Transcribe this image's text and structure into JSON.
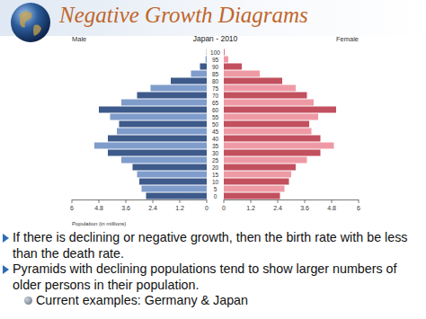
{
  "header": {
    "title": "Negative Growth Diagrams"
  },
  "chart_data": {
    "type": "pyramid",
    "title": "Japan - 2010",
    "orientation": "horizontal",
    "grid": false,
    "x_label": "Population (in millions)",
    "categories": [
      "0",
      "5",
      "10",
      "15",
      "20",
      "25",
      "30",
      "35",
      "40",
      "45",
      "50",
      "55",
      "60",
      "65",
      "70",
      "75",
      "80",
      "85",
      "90",
      "95",
      "100"
    ],
    "xlim": [
      0,
      6
    ],
    "xticks": [
      0,
      1.2,
      2.4,
      3.6,
      4.8,
      6
    ],
    "series": [
      {
        "name": "Male",
        "color": "#3d5a8a",
        "colors": [
          "#3d5a8a",
          "#7f9ccb",
          "#3d5a8a",
          "#7f9ccb",
          "#3d5a8a",
          "#7f9ccb",
          "#3d5a8a",
          "#7f9ccb",
          "#3d5a8a",
          "#7f9ccb",
          "#3d5a8a",
          "#7f9ccb",
          "#3d5a8a",
          "#7f9ccb",
          "#3d5a8a",
          "#7f9ccb",
          "#3d5a8a",
          "#7f9ccb",
          "#3d5a8a",
          "#7f9ccb",
          "#3d5a8a"
        ],
        "values": [
          2.7,
          2.9,
          3.0,
          3.1,
          3.3,
          3.8,
          4.4,
          5.0,
          4.4,
          4.0,
          3.9,
          4.3,
          4.8,
          3.8,
          3.1,
          2.5,
          1.6,
          0.7,
          0.3,
          0.05,
          0.01
        ]
      },
      {
        "name": "Female",
        "color": "#c2505e",
        "colors": [
          "#c2505e",
          "#ee9aa5",
          "#c2505e",
          "#ee9aa5",
          "#c2505e",
          "#ee9aa5",
          "#c2505e",
          "#ee9aa5",
          "#c2505e",
          "#ee9aa5",
          "#c2505e",
          "#ee9aa5",
          "#c2505e",
          "#ee9aa5",
          "#c2505e",
          "#ee9aa5",
          "#c2505e",
          "#ee9aa5",
          "#c2505e",
          "#ee9aa5",
          "#c2505e"
        ],
        "values": [
          2.5,
          2.7,
          2.9,
          3.0,
          3.2,
          3.7,
          4.3,
          4.9,
          4.3,
          3.9,
          3.8,
          4.2,
          5.0,
          4.0,
          3.7,
          3.2,
          2.6,
          1.6,
          0.8,
          0.2,
          0.03
        ]
      }
    ]
  },
  "bullets": [
    {
      "text": "If there is declining or negative growth, then the birth rate with be less than the death rate."
    },
    {
      "text": "Pyramids with declining populations tend to show larger numbers of older persons in their population.",
      "sub": [
        "Current examples: Germany & Japan"
      ]
    }
  ]
}
